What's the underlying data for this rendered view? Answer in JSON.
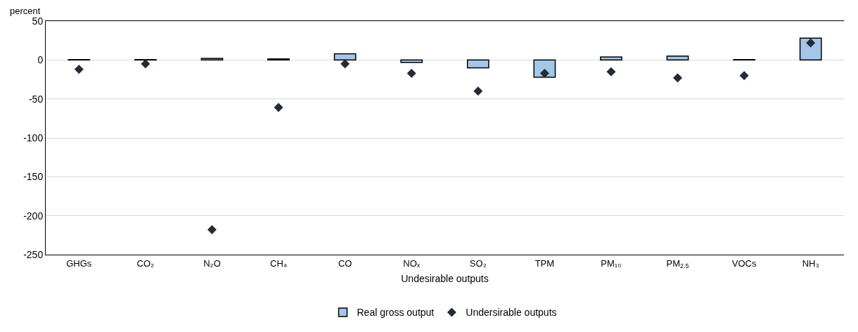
{
  "chart_data": {
    "type": "bar",
    "categories": [
      "GHGs",
      "CO₂",
      "N₂O",
      "CH₄",
      "CO",
      "NOₓ",
      "SO₂",
      "TPM",
      "PM₁₀",
      "PM$_{2.5}$",
      "VOCs",
      "NH₃"
    ],
    "series": [
      {
        "name": "Real gross output",
        "color": "#a3c6e9",
        "values": [
          0.5,
          0.5,
          2,
          1.5,
          8,
          -3,
          -10,
          -22,
          4,
          5,
          0.5,
          28
        ]
      },
      {
        "name": "Undersirable outputs",
        "type": "scatter",
        "marker": "diamond",
        "color": "#232b38",
        "values": [
          -12,
          -5,
          -218,
          -61,
          -5,
          -17,
          -40,
          -17,
          -15,
          -23,
          -20,
          22
        ]
      }
    ],
    "xlabel": "Undesirable outputs",
    "ylabel": "percent",
    "ylim": [
      -250,
      50
    ],
    "yticks": [
      -250,
      -200,
      -150,
      -100,
      -50,
      0,
      50
    ],
    "grid": "y",
    "legend": "bottom"
  }
}
